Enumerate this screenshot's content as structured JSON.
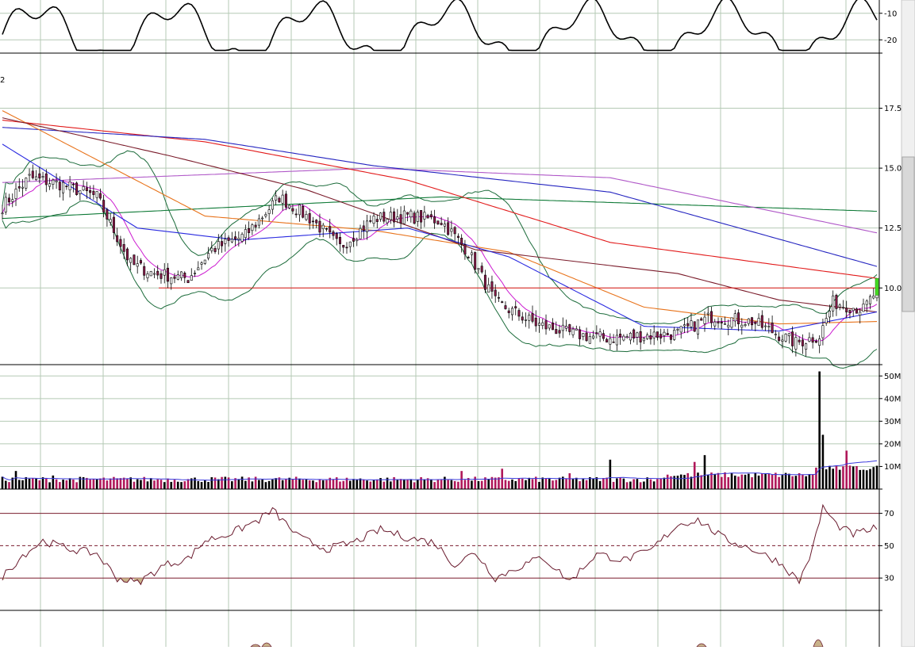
{
  "colors": {
    "grid": "#b5c9b5",
    "panel_border": "#000000",
    "candle_up": "#ffffff",
    "candle_down": "#8b1a4a",
    "support_line": "#e21b1b",
    "rsi_line": "#6a1b2e",
    "rsi_fill": "#c8b28a",
    "volume_up": "#000000",
    "volume_down": "#b0185a",
    "volume_ma": "#3a3adc",
    "current_bar": "#44dd22"
  },
  "chart_data": [
    {
      "panel": "oscillator_top",
      "type": "line",
      "tick_labels": [
        "-10",
        "-20"
      ],
      "y_ticks": [
        -10,
        -20
      ],
      "ylim": [
        -25,
        -5
      ]
    },
    {
      "panel": "price",
      "type": "candlestick",
      "corner_label": "2",
      "tick_labels": [
        "17.5",
        "15.0",
        "12.5",
        "10.0"
      ],
      "y_ticks": [
        17.5,
        15.0,
        12.5,
        10.0
      ],
      "ylim": [
        6.8,
        19.8
      ],
      "bars": 260,
      "support_level": 10.0,
      "price_path": [
        [
          0,
          13.4
        ],
        [
          8,
          14.6
        ],
        [
          18,
          14.3
        ],
        [
          28,
          13.8
        ],
        [
          38,
          11.0
        ],
        [
          45,
          10.6
        ],
        [
          55,
          10.4
        ],
        [
          62,
          11.6
        ],
        [
          72,
          12.2
        ],
        [
          82,
          13.8
        ],
        [
          92,
          12.8
        ],
        [
          100,
          11.7
        ],
        [
          110,
          12.9
        ],
        [
          120,
          13.0
        ],
        [
          130,
          12.8
        ],
        [
          138,
          11.5
        ],
        [
          146,
          9.4
        ],
        [
          158,
          8.5
        ],
        [
          168,
          8.1
        ],
        [
          178,
          7.9
        ],
        [
          200,
          8.1
        ],
        [
          210,
          8.8
        ],
        [
          222,
          8.6
        ],
        [
          235,
          7.7
        ],
        [
          242,
          8.0
        ],
        [
          246,
          9.4
        ],
        [
          255,
          9.1
        ],
        [
          259,
          9.9
        ]
      ],
      "moving_averages": [
        {
          "color": "#0f7a37",
          "path": [
            [
              0,
              12.9
            ],
            [
              130,
              13.8
            ],
            [
              259,
              13.2
            ]
          ]
        },
        {
          "color": "#b058c8",
          "path": [
            [
              0,
              14.4
            ],
            [
              110,
              15.0
            ],
            [
              180,
              14.6
            ],
            [
              259,
              12.3
            ]
          ]
        },
        {
          "color": "#e21b1b",
          "path": [
            [
              0,
              17.0
            ],
            [
              60,
              16.1
            ],
            [
              120,
              14.5
            ],
            [
              180,
              11.9
            ],
            [
              259,
              10.4
            ]
          ]
        },
        {
          "color": "#2424c0",
          "path": [
            [
              0,
              16.7
            ],
            [
              60,
              16.2
            ],
            [
              110,
              15.1
            ],
            [
              180,
              14.0
            ],
            [
              259,
              10.9
            ]
          ]
        },
        {
          "color": "#e8731b",
          "path": [
            [
              0,
              17.4
            ],
            [
              60,
              13.0
            ],
            [
              110,
              12.4
            ],
            [
              150,
              11.5
            ],
            [
              190,
              9.2
            ],
            [
              230,
              8.5
            ],
            [
              259,
              8.6
            ]
          ]
        },
        {
          "color": "#7a1b2a",
          "path": [
            [
              0,
              17.1
            ],
            [
              50,
              15.5
            ],
            [
              90,
              14.1
            ],
            [
              140,
              11.6
            ],
            [
              200,
              10.6
            ],
            [
              230,
              9.5
            ],
            [
              259,
              9.0
            ]
          ]
        },
        {
          "color": "#2a2ae0",
          "path": [
            [
              0,
              16.0
            ],
            [
              40,
              12.5
            ],
            [
              70,
              12.0
            ],
            [
              120,
              12.5
            ],
            [
              150,
              11.3
            ],
            [
              190,
              8.4
            ],
            [
              230,
              8.2
            ],
            [
              259,
              9.0
            ]
          ]
        }
      ]
    },
    {
      "panel": "volume",
      "type": "bar",
      "tick_labels": [
        "50M",
        "40M",
        "30M",
        "20M",
        "10M"
      ],
      "y_ticks": [
        50,
        40,
        30,
        20,
        10
      ],
      "ylim": [
        0,
        55
      ],
      "unit": "M",
      "spikes": [
        [
          4,
          8
        ],
        [
          15,
          6
        ],
        [
          136,
          8
        ],
        [
          148,
          9
        ],
        [
          168,
          7
        ],
        [
          180,
          13
        ],
        [
          205,
          12
        ],
        [
          208,
          15
        ],
        [
          242,
          52
        ],
        [
          243,
          24
        ],
        [
          246,
          9
        ],
        [
          250,
          17
        ],
        [
          252,
          10
        ]
      ],
      "base_level": 3
    },
    {
      "panel": "rsi",
      "type": "line",
      "tick_labels": [
        "70",
        "50",
        "30"
      ],
      "y_ticks": [
        70,
        50,
        30
      ],
      "ylim": [
        10,
        85
      ],
      "rsi_path": [
        [
          0,
          31
        ],
        [
          6,
          44
        ],
        [
          12,
          53
        ],
        [
          20,
          48
        ],
        [
          28,
          45
        ],
        [
          34,
          30
        ],
        [
          40,
          27
        ],
        [
          48,
          38
        ],
        [
          55,
          42
        ],
        [
          60,
          53
        ],
        [
          68,
          58
        ],
        [
          76,
          66
        ],
        [
          80,
          72
        ],
        [
          88,
          55
        ],
        [
          96,
          48
        ],
        [
          104,
          52
        ],
        [
          112,
          60
        ],
        [
          120,
          55
        ],
        [
          128,
          52
        ],
        [
          134,
          38
        ],
        [
          140,
          46
        ],
        [
          146,
          30
        ],
        [
          152,
          36
        ],
        [
          160,
          43
        ],
        [
          168,
          28
        ],
        [
          176,
          45
        ],
        [
          184,
          41
        ],
        [
          192,
          47
        ],
        [
          200,
          63
        ],
        [
          206,
          66
        ],
        [
          214,
          54
        ],
        [
          222,
          48
        ],
        [
          230,
          40
        ],
        [
          236,
          28
        ],
        [
          240,
          48
        ],
        [
          243,
          74
        ],
        [
          247,
          63
        ],
        [
          252,
          57
        ],
        [
          259,
          61
        ]
      ]
    }
  ]
}
